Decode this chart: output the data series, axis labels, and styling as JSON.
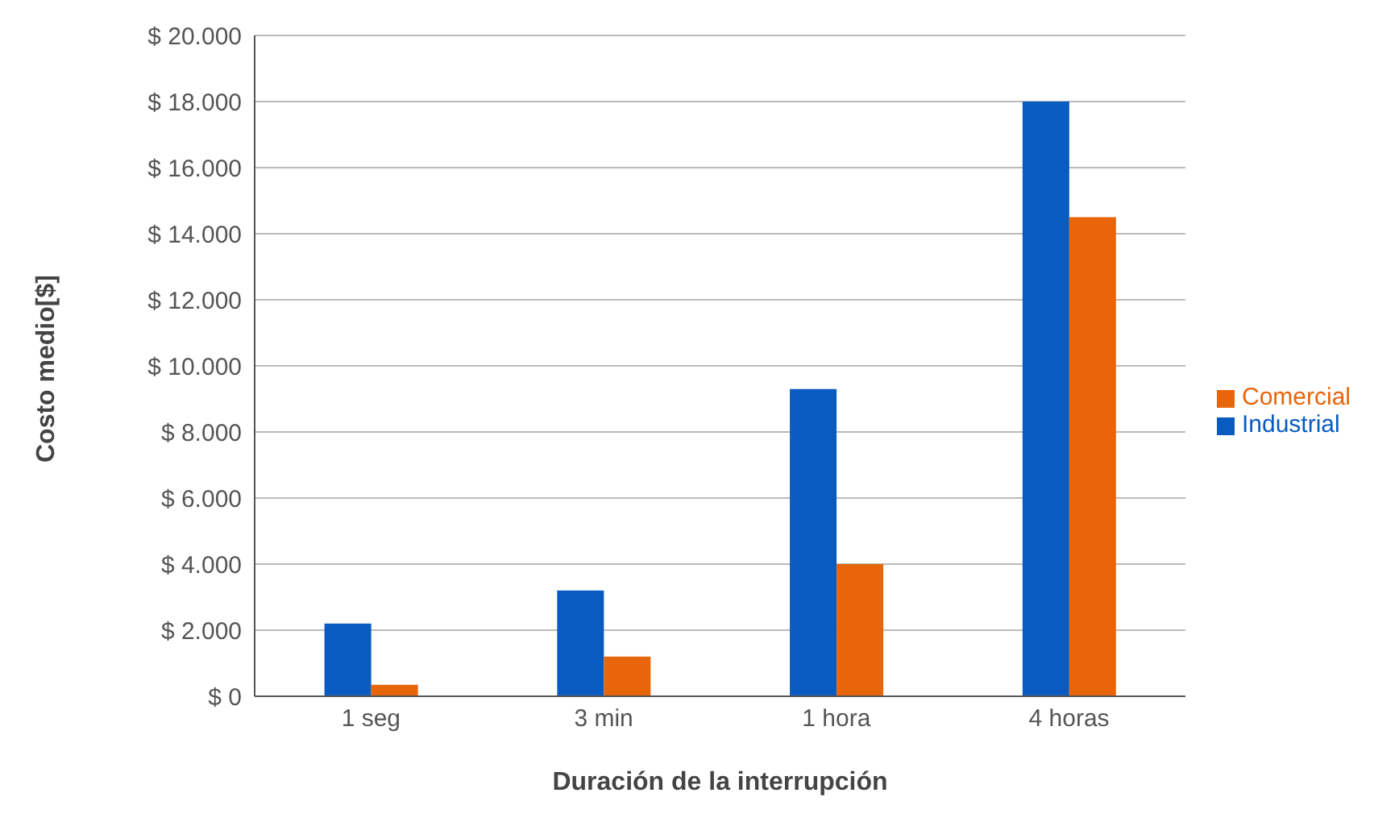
{
  "chart_data": {
    "type": "bar",
    "xlabel": "Duración de la interrupción",
    "ylabel": "Costo medio[$]",
    "categories": [
      "1 seg",
      "3 min",
      "1 hora",
      "4 horas"
    ],
    "series": [
      {
        "name": "Industrial",
        "color": "#0a5bbf",
        "values": [
          2200,
          3200,
          9300,
          18000
        ]
      },
      {
        "name": "Comercial",
        "color": "#e8650a",
        "values": [
          350,
          1200,
          4000,
          14500
        ]
      }
    ],
    "ylim": [
      0,
      20000
    ],
    "yticks": [
      {
        "value": 0,
        "label": "$ 0"
      },
      {
        "value": 2000,
        "label": "$ 2.000"
      },
      {
        "value": 4000,
        "label": "$ 4.000"
      },
      {
        "value": 6000,
        "label": "$ 6.000"
      },
      {
        "value": 8000,
        "label": "$ 8.000"
      },
      {
        "value": 10000,
        "label": "$ 10.000"
      },
      {
        "value": 12000,
        "label": "$ 12.000"
      },
      {
        "value": 14000,
        "label": "$ 14.000"
      },
      {
        "value": 16000,
        "label": "$ 16.000"
      },
      {
        "value": 18000,
        "label": "$ 18.000"
      },
      {
        "value": 20000,
        "label": "$ 20.000"
      }
    ],
    "grid": "y",
    "legend": "right"
  }
}
